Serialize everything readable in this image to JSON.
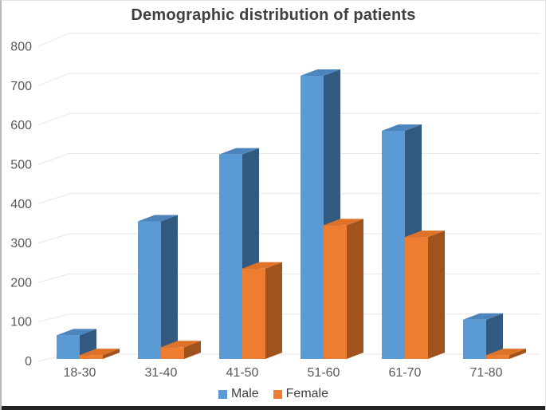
{
  "chart_data": {
    "type": "bar",
    "subtype": "3d-clustered-column",
    "title": "Demographic distribution of patients",
    "categories": [
      "18-30",
      "31-40",
      "41-50",
      "51-60",
      "61-70",
      "71-80"
    ],
    "series": [
      {
        "key": "male",
        "name": "Male",
        "color": "#5B9BD5",
        "values": [
          60,
          350,
          520,
          720,
          580,
          100
        ]
      },
      {
        "key": "female",
        "name": "Female",
        "color": "#ED7D31",
        "values": [
          10,
          30,
          230,
          340,
          310,
          10
        ]
      }
    ],
    "xlabel": "",
    "ylabel": "",
    "ylim": [
      0,
      800
    ],
    "yticks": [
      0,
      100,
      200,
      300,
      400,
      500,
      600,
      700,
      800
    ],
    "grid": true,
    "legend_position": "bottom"
  },
  "colors": {
    "male": {
      "front": "#5B9BD5",
      "top": "#4D84BC",
      "side": "#325A80"
    },
    "female": {
      "front": "#ED7D31",
      "top": "#DE7229",
      "side": "#A1531D"
    },
    "gridline": "#E7E7E7",
    "title_text": "#404040",
    "axis_text": "#595959",
    "legend_text": "#404040",
    "bottom_border": "#232323"
  }
}
